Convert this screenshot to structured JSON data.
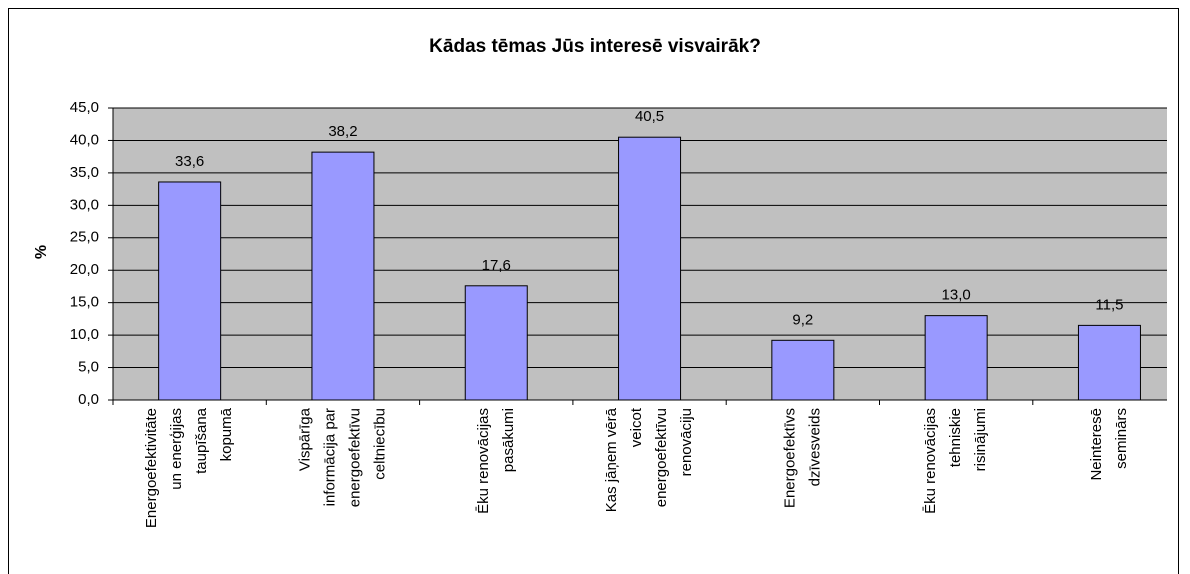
{
  "chart_data": {
    "type": "bar",
    "title": "Kādas tēmas Jūs interesē visvairāk?",
    "y_label": "%",
    "categories": [
      "Energoefektivitāte\nun enerģijas\ntaupīšana\nkopumā",
      "Vispārīga\ninformācija par\nenergoefektīvu\nceltniecību",
      "Ēku renovācijas\npasākumi",
      "Kas jāņem vērā\nveicot\nenergoefektīvu\nrenovāciju",
      "Energoefektīvs\ndzīvesveids",
      "Ēku renovācijas\ntehniskie\nrisinājumi",
      "Neinteresē\nseminārs"
    ],
    "values": [
      33.6,
      38.2,
      17.6,
      40.5,
      9.2,
      13.0,
      11.5
    ],
    "value_labels": [
      "33,6",
      "38,2",
      "17,6",
      "40,5",
      "9,2",
      "13,0",
      "11,5"
    ],
    "color": "#9999ff",
    "plot_background": "#c0c0c0",
    "ylim": [
      0,
      45
    ],
    "yticks": [
      {
        "value": 0,
        "label": "0,0"
      },
      {
        "value": 5,
        "label": "5,0"
      },
      {
        "value": 10,
        "label": "10,0"
      },
      {
        "value": 15,
        "label": "15,0"
      },
      {
        "value": 20,
        "label": "20,0"
      },
      {
        "value": 25,
        "label": "25,0"
      },
      {
        "value": 30,
        "label": "30,0"
      },
      {
        "value": 35,
        "label": "35,0"
      },
      {
        "value": 40,
        "label": "40,0"
      },
      {
        "value": 45,
        "label": "45,0"
      }
    ],
    "grid": true
  }
}
